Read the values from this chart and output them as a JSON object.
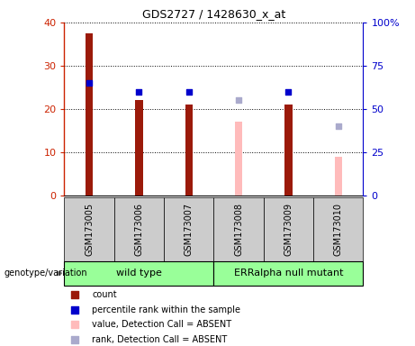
{
  "title": "GDS2727 / 1428630_x_at",
  "samples": [
    "GSM173005",
    "GSM173006",
    "GSM173007",
    "GSM173008",
    "GSM173009",
    "GSM173010"
  ],
  "counts": [
    37.5,
    22.0,
    21.0,
    null,
    21.0,
    null
  ],
  "ranks": [
    65.0,
    60.0,
    60.0,
    null,
    60.0,
    null
  ],
  "absent_values": [
    null,
    null,
    null,
    17.0,
    null,
    9.0
  ],
  "absent_ranks": [
    null,
    null,
    null,
    55.0,
    null,
    40.0
  ],
  "group_labels": [
    "wild type",
    "ERRalpha null mutant"
  ],
  "bar_color_present": "#9b1a0a",
  "bar_color_absent": "#ffbbbb",
  "dot_color_present": "#0000cc",
  "dot_color_absent": "#aaaacc",
  "ylim_left": [
    0,
    40
  ],
  "ylim_right": [
    0,
    100
  ],
  "yticks_left": [
    0,
    10,
    20,
    30,
    40
  ],
  "yticks_right": [
    0,
    25,
    50,
    75,
    100
  ],
  "yticklabels_right": [
    "0",
    "25",
    "50",
    "75",
    "100%"
  ],
  "background_color": "#ffffff",
  "group_bg": "#99ff99",
  "sample_bg": "#cccccc",
  "left_axis_color": "#cc2200",
  "right_axis_color": "#0000cc",
  "bar_width": 0.15,
  "dot_size": 25,
  "legend_items": [
    {
      "color": "#9b1a0a",
      "label": "count"
    },
    {
      "color": "#0000cc",
      "label": "percentile rank within the sample"
    },
    {
      "color": "#ffbbbb",
      "label": "value, Detection Call = ABSENT"
    },
    {
      "color": "#aaaacc",
      "label": "rank, Detection Call = ABSENT"
    }
  ]
}
